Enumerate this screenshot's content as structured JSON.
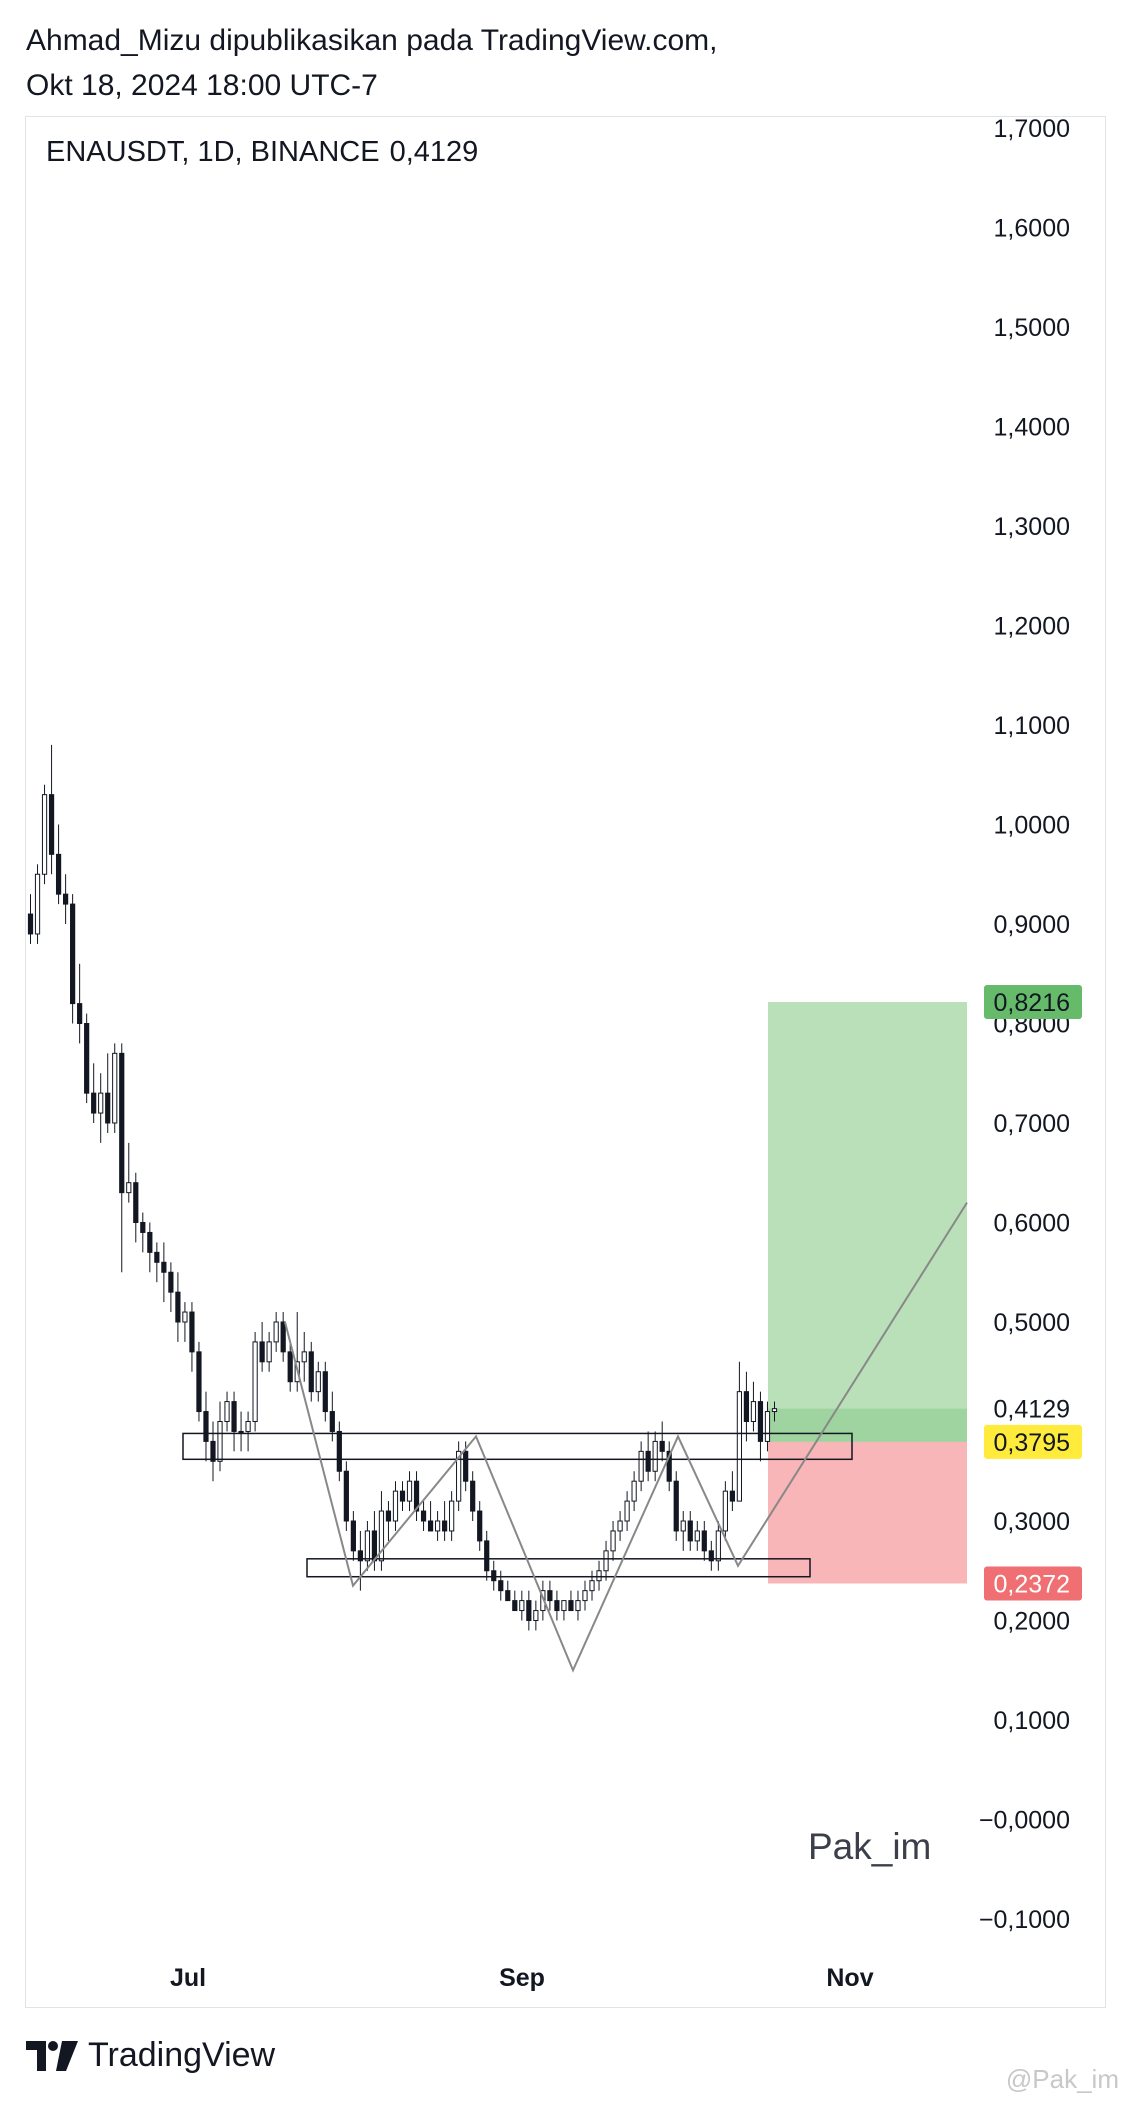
{
  "header": {
    "line1": "Ahmad_Mizu dipublikasikan pada TradingView.com,",
    "line2": "Okt 18, 2024 18:00 UTC-7"
  },
  "symbol": {
    "name": "ENAUSDT, 1D, BINANCE",
    "last": "0,4129"
  },
  "watermark": "Pak_im",
  "footer": {
    "brand": "TradingView"
  },
  "credit": "@Pak_im",
  "colors": {
    "profit_zone": "#b9e0b9",
    "loss_zone": "#f9b6b9",
    "target_label": "#66bb6a",
    "entry_label": "#ffeb3b",
    "stop_label": "#ef6f72",
    "candles": "#131722",
    "pattern_line": "#888888"
  },
  "chart_data": {
    "type": "candlestick",
    "y_axis": {
      "min": -0.15,
      "max": 1.7,
      "ticks": [
        "1,7000",
        "1,6000",
        "1,5000",
        "1,4000",
        "1,3000",
        "1,2000",
        "1,1000",
        "1,0000",
        "0,9000",
        "0,8000",
        "0,7000",
        "0,6000",
        "0,5000",
        "0,4129",
        "0,3000",
        "0,2000",
        "0,1000",
        "−0,0000",
        "−0,1000"
      ],
      "tick_values": [
        1.7,
        1.6,
        1.5,
        1.4,
        1.3,
        1.2,
        1.1,
        1.0,
        0.9,
        0.8,
        0.7,
        0.6,
        0.5,
        0.4129,
        0.3,
        0.2,
        0.1,
        0.0,
        -0.1
      ]
    },
    "x_axis": {
      "labels": [
        "Jul",
        "Sep",
        "Nov"
      ]
    },
    "position": {
      "target": 0.8216,
      "target_label": "0,8216",
      "entry": 0.3795,
      "entry_label": "0,3795",
      "stop": 0.2372,
      "stop_label": "0,2372"
    },
    "zones": [
      {
        "name": "resistance-box",
        "top": 0.388,
        "bottom": 0.362
      },
      {
        "name": "support-box",
        "top": 0.262,
        "bottom": 0.244
      }
    ],
    "pattern_path": [
      0.5,
      0.235,
      0.385,
      0.15,
      0.385,
      0.255,
      0.62
    ],
    "candles": [
      [
        0.91,
        0.93,
        0.88,
        0.89
      ],
      [
        0.89,
        0.96,
        0.88,
        0.95
      ],
      [
        0.95,
        1.04,
        0.94,
        1.03
      ],
      [
        1.03,
        1.08,
        0.95,
        0.97
      ],
      [
        0.97,
        1.0,
        0.92,
        0.93
      ],
      [
        0.93,
        0.95,
        0.9,
        0.92
      ],
      [
        0.92,
        0.93,
        0.8,
        0.82
      ],
      [
        0.82,
        0.86,
        0.78,
        0.8
      ],
      [
        0.8,
        0.81,
        0.72,
        0.73
      ],
      [
        0.73,
        0.76,
        0.7,
        0.71
      ],
      [
        0.71,
        0.75,
        0.68,
        0.73
      ],
      [
        0.73,
        0.77,
        0.69,
        0.7
      ],
      [
        0.7,
        0.78,
        0.69,
        0.77
      ],
      [
        0.77,
        0.78,
        0.55,
        0.63
      ],
      [
        0.63,
        0.68,
        0.62,
        0.64
      ],
      [
        0.64,
        0.65,
        0.58,
        0.6
      ],
      [
        0.6,
        0.61,
        0.57,
        0.59
      ],
      [
        0.59,
        0.6,
        0.55,
        0.57
      ],
      [
        0.57,
        0.58,
        0.54,
        0.56
      ],
      [
        0.56,
        0.58,
        0.52,
        0.55
      ],
      [
        0.55,
        0.56,
        0.51,
        0.53
      ],
      [
        0.53,
        0.55,
        0.48,
        0.5
      ],
      [
        0.5,
        0.52,
        0.48,
        0.51
      ],
      [
        0.51,
        0.52,
        0.45,
        0.47
      ],
      [
        0.47,
        0.48,
        0.4,
        0.41
      ],
      [
        0.41,
        0.43,
        0.36,
        0.38
      ],
      [
        0.38,
        0.4,
        0.34,
        0.36
      ],
      [
        0.36,
        0.42,
        0.35,
        0.4
      ],
      [
        0.4,
        0.43,
        0.39,
        0.42
      ],
      [
        0.42,
        0.43,
        0.37,
        0.39
      ],
      [
        0.39,
        0.41,
        0.37,
        0.39
      ],
      [
        0.39,
        0.41,
        0.37,
        0.4
      ],
      [
        0.4,
        0.49,
        0.39,
        0.48
      ],
      [
        0.48,
        0.5,
        0.45,
        0.46
      ],
      [
        0.46,
        0.49,
        0.45,
        0.48
      ],
      [
        0.48,
        0.51,
        0.47,
        0.5
      ],
      [
        0.5,
        0.51,
        0.46,
        0.47
      ],
      [
        0.47,
        0.48,
        0.43,
        0.44
      ],
      [
        0.44,
        0.51,
        0.43,
        0.46
      ],
      [
        0.46,
        0.49,
        0.44,
        0.47
      ],
      [
        0.47,
        0.48,
        0.42,
        0.43
      ],
      [
        0.43,
        0.46,
        0.42,
        0.45
      ],
      [
        0.45,
        0.46,
        0.4,
        0.41
      ],
      [
        0.41,
        0.43,
        0.38,
        0.39
      ],
      [
        0.39,
        0.4,
        0.34,
        0.35
      ],
      [
        0.35,
        0.36,
        0.29,
        0.3
      ],
      [
        0.3,
        0.31,
        0.26,
        0.27
      ],
      [
        0.27,
        0.29,
        0.23,
        0.26
      ],
      [
        0.26,
        0.3,
        0.25,
        0.29
      ],
      [
        0.29,
        0.31,
        0.25,
        0.26
      ],
      [
        0.26,
        0.33,
        0.25,
        0.31
      ],
      [
        0.31,
        0.32,
        0.28,
        0.3
      ],
      [
        0.3,
        0.34,
        0.29,
        0.33
      ],
      [
        0.33,
        0.34,
        0.31,
        0.32
      ],
      [
        0.32,
        0.35,
        0.31,
        0.34
      ],
      [
        0.34,
        0.35,
        0.3,
        0.31
      ],
      [
        0.31,
        0.32,
        0.29,
        0.3
      ],
      [
        0.3,
        0.32,
        0.29,
        0.29
      ],
      [
        0.29,
        0.31,
        0.28,
        0.3
      ],
      [
        0.3,
        0.32,
        0.28,
        0.29
      ],
      [
        0.29,
        0.33,
        0.28,
        0.32
      ],
      [
        0.32,
        0.38,
        0.31,
        0.37
      ],
      [
        0.37,
        0.38,
        0.33,
        0.34
      ],
      [
        0.34,
        0.35,
        0.3,
        0.31
      ],
      [
        0.31,
        0.32,
        0.27,
        0.28
      ],
      [
        0.28,
        0.29,
        0.24,
        0.25
      ],
      [
        0.25,
        0.26,
        0.23,
        0.24
      ],
      [
        0.24,
        0.25,
        0.22,
        0.23
      ],
      [
        0.23,
        0.24,
        0.22,
        0.22
      ],
      [
        0.22,
        0.23,
        0.21,
        0.21
      ],
      [
        0.21,
        0.23,
        0.2,
        0.22
      ],
      [
        0.22,
        0.23,
        0.19,
        0.2
      ],
      [
        0.2,
        0.22,
        0.19,
        0.21
      ],
      [
        0.21,
        0.24,
        0.2,
        0.23
      ],
      [
        0.23,
        0.24,
        0.21,
        0.22
      ],
      [
        0.22,
        0.23,
        0.2,
        0.21
      ],
      [
        0.21,
        0.22,
        0.2,
        0.22
      ],
      [
        0.22,
        0.23,
        0.21,
        0.21
      ],
      [
        0.21,
        0.23,
        0.2,
        0.22
      ],
      [
        0.22,
        0.24,
        0.21,
        0.23
      ],
      [
        0.23,
        0.25,
        0.22,
        0.24
      ],
      [
        0.24,
        0.26,
        0.23,
        0.25
      ],
      [
        0.25,
        0.28,
        0.24,
        0.27
      ],
      [
        0.27,
        0.3,
        0.26,
        0.29
      ],
      [
        0.29,
        0.31,
        0.28,
        0.3
      ],
      [
        0.3,
        0.33,
        0.29,
        0.32
      ],
      [
        0.32,
        0.35,
        0.31,
        0.34
      ],
      [
        0.34,
        0.38,
        0.33,
        0.37
      ],
      [
        0.37,
        0.39,
        0.34,
        0.35
      ],
      [
        0.35,
        0.39,
        0.34,
        0.38
      ],
      [
        0.38,
        0.4,
        0.36,
        0.37
      ],
      [
        0.37,
        0.38,
        0.33,
        0.34
      ],
      [
        0.34,
        0.35,
        0.28,
        0.29
      ],
      [
        0.29,
        0.31,
        0.27,
        0.3
      ],
      [
        0.3,
        0.31,
        0.27,
        0.28
      ],
      [
        0.28,
        0.3,
        0.27,
        0.29
      ],
      [
        0.29,
        0.3,
        0.26,
        0.27
      ],
      [
        0.27,
        0.28,
        0.25,
        0.26
      ],
      [
        0.26,
        0.3,
        0.25,
        0.29
      ],
      [
        0.29,
        0.34,
        0.28,
        0.33
      ],
      [
        0.33,
        0.35,
        0.31,
        0.32
      ],
      [
        0.32,
        0.46,
        0.32,
        0.43
      ],
      [
        0.43,
        0.45,
        0.38,
        0.4
      ],
      [
        0.4,
        0.44,
        0.39,
        0.42
      ],
      [
        0.42,
        0.43,
        0.36,
        0.38
      ],
      [
        0.38,
        0.42,
        0.37,
        0.41
      ],
      [
        0.41,
        0.42,
        0.4,
        0.4129
      ]
    ]
  }
}
